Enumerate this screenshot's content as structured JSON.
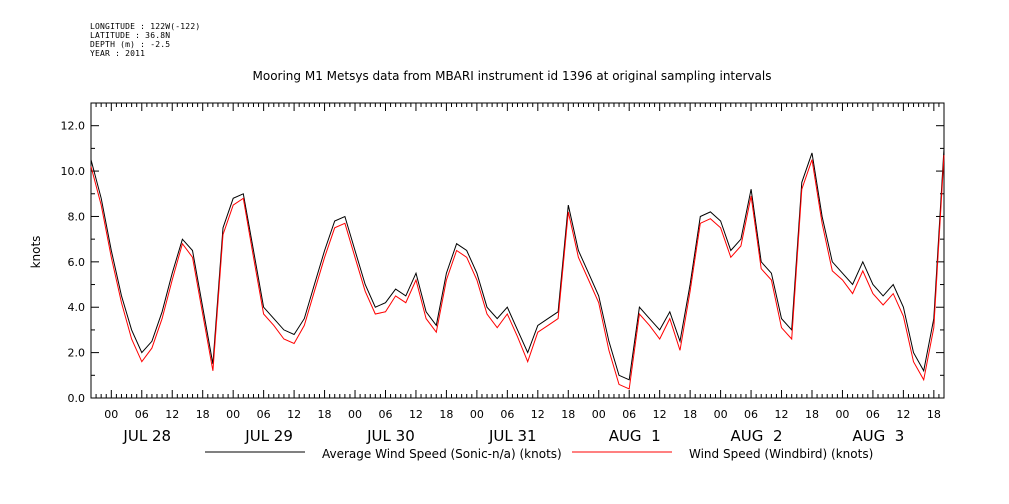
{
  "header": {
    "longitude": "LONGITUDE : 122W(-122)",
    "latitude": "LATITUDE : 36.8N",
    "depth": "DEPTH (m) : -2.5",
    "year": "YEAR : 2011"
  },
  "chart_data": {
    "type": "line",
    "title": "Mooring M1 Metsys data from MBARI instrument id 1396 at original sampling intervals",
    "ylabel": "knots",
    "ylim": [
      0,
      13
    ],
    "yticks": [
      "0.0",
      "2.0",
      "4.0",
      "6.0",
      "8.0",
      "10.0",
      "12.0"
    ],
    "xlim_hours": [
      -4,
      164
    ],
    "hour_ticks": [
      "00",
      "06",
      "12",
      "18",
      "00",
      "06",
      "12",
      "18",
      "00",
      "06",
      "12",
      "18",
      "00",
      "06",
      "12",
      "18",
      "00",
      "06",
      "12",
      "18",
      "00",
      "06",
      "12",
      "18",
      "00",
      "06",
      "12",
      "18"
    ],
    "day_labels": [
      "JUL 28",
      "JUL 29",
      "JUL 30",
      "JUL 31",
      "AUG  1",
      "AUG  2",
      "AUG  3"
    ],
    "colors": {
      "average": "#000000",
      "windbird": "#ff0000"
    },
    "series": [
      {
        "name": "Average Wind Speed (Sonic-n/a) (knots)",
        "color": "#000000",
        "x": [
          -4,
          -2,
          0,
          2,
          4,
          6,
          8,
          10,
          12,
          14,
          16,
          18,
          20,
          22,
          24,
          26,
          28,
          30,
          32,
          34,
          36,
          38,
          40,
          42,
          44,
          46,
          48,
          50,
          52,
          54,
          56,
          58,
          60,
          62,
          64,
          66,
          68,
          70,
          72,
          74,
          76,
          78,
          80,
          82,
          84,
          86,
          88,
          90,
          92,
          94,
          96,
          98,
          100,
          102,
          104,
          106,
          108,
          110,
          112,
          114,
          116,
          118,
          120,
          122,
          124,
          126,
          128,
          130,
          132,
          134,
          136,
          138,
          140,
          142,
          144,
          146,
          148,
          150,
          152,
          154,
          156,
          158,
          160,
          162,
          164
        ],
        "y": [
          10.5,
          8.8,
          6.5,
          4.5,
          3.0,
          2.0,
          2.5,
          3.8,
          5.5,
          7.0,
          6.5,
          4.0,
          1.5,
          7.5,
          8.8,
          9.0,
          6.5,
          4.0,
          3.5,
          3.0,
          2.8,
          3.5,
          5.0,
          6.5,
          7.8,
          8.0,
          6.5,
          5.0,
          4.0,
          4.2,
          4.8,
          4.5,
          5.5,
          3.8,
          3.2,
          5.5,
          6.8,
          6.5,
          5.5,
          4.0,
          3.5,
          4.0,
          3.0,
          2.0,
          3.2,
          3.5,
          3.8,
          8.5,
          6.5,
          5.5,
          4.5,
          2.5,
          1.0,
          0.8,
          4.0,
          3.5,
          3.0,
          3.8,
          2.5,
          5.0,
          8.0,
          8.2,
          7.8,
          6.5,
          7.0,
          9.2,
          6.0,
          5.5,
          3.5,
          3.0,
          9.5,
          10.8,
          8.0,
          6.0,
          5.5,
          5.0,
          6.0,
          5.0,
          4.5,
          5.0,
          4.0,
          2.0,
          1.2,
          3.5,
          11.0
        ]
      },
      {
        "name": "Wind Speed (Windbird) (knots)",
        "color": "#ff0000",
        "x": [
          -4,
          -2,
          0,
          2,
          4,
          6,
          8,
          10,
          12,
          14,
          16,
          18,
          20,
          22,
          24,
          26,
          28,
          30,
          32,
          34,
          36,
          38,
          40,
          42,
          44,
          46,
          48,
          50,
          52,
          54,
          56,
          58,
          60,
          62,
          64,
          66,
          68,
          70,
          72,
          74,
          76,
          78,
          80,
          82,
          84,
          86,
          88,
          90,
          92,
          94,
          96,
          98,
          100,
          102,
          104,
          106,
          108,
          110,
          112,
          114,
          116,
          118,
          120,
          122,
          124,
          126,
          128,
          130,
          132,
          134,
          136,
          138,
          140,
          142,
          144,
          146,
          148,
          150,
          152,
          154,
          156,
          158,
          160,
          162,
          164
        ],
        "y": [
          10.2,
          8.5,
          6.2,
          4.2,
          2.6,
          1.6,
          2.2,
          3.5,
          5.2,
          6.8,
          6.2,
          3.7,
          1.2,
          7.2,
          8.5,
          8.8,
          6.2,
          3.7,
          3.2,
          2.6,
          2.4,
          3.2,
          4.7,
          6.2,
          7.5,
          7.7,
          6.2,
          4.7,
          3.7,
          3.8,
          4.5,
          4.2,
          5.2,
          3.5,
          2.9,
          5.2,
          6.5,
          6.2,
          5.2,
          3.7,
          3.1,
          3.7,
          2.7,
          1.6,
          2.9,
          3.2,
          3.5,
          8.2,
          6.2,
          5.2,
          4.2,
          2.1,
          0.6,
          0.4,
          3.7,
          3.2,
          2.6,
          3.5,
          2.1,
          4.7,
          7.7,
          7.9,
          7.5,
          6.2,
          6.7,
          8.9,
          5.7,
          5.2,
          3.1,
          2.6,
          9.2,
          10.5,
          7.7,
          5.6,
          5.2,
          4.6,
          5.6,
          4.6,
          4.1,
          4.6,
          3.6,
          1.6,
          0.8,
          3.1,
          10.7
        ]
      }
    ]
  }
}
